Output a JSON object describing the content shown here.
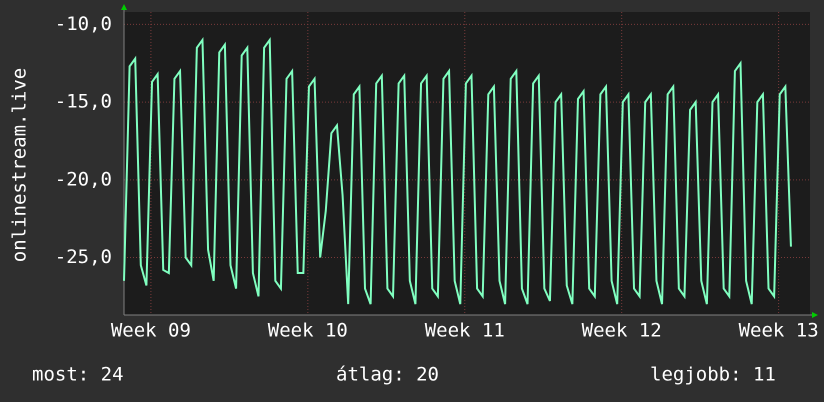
{
  "chart_data": {
    "type": "line",
    "y_label": "onlinestream.live",
    "x": [
      0,
      0.25,
      0.5,
      0.75,
      1,
      1.25,
      1.5,
      1.75,
      2,
      2.25,
      2.5,
      2.75,
      3,
      3.25,
      3.5,
      3.75,
      4,
      4.25,
      4.5,
      4.75,
      5,
      5.25,
      5.5,
      5.75,
      6,
      6.25,
      6.5,
      6.75,
      7,
      7.25,
      7.5,
      7.75,
      8,
      8.25,
      8.5,
      8.75,
      9,
      9.25,
      9.5,
      9.75,
      10,
      10.25,
      10.5,
      10.75,
      11,
      11.25,
      11.5,
      11.75,
      12,
      12.25,
      12.5,
      12.75,
      13,
      13.25,
      13.5,
      13.75,
      14,
      14.25,
      14.5,
      14.75,
      15,
      15.25,
      15.5,
      15.75,
      16,
      16.25,
      16.5,
      16.75,
      17,
      17.25,
      17.5,
      17.75,
      18,
      18.25,
      18.5,
      18.75,
      19,
      19.25,
      19.5,
      19.75,
      20,
      20.25,
      20.5,
      20.75,
      21,
      21.25,
      21.5,
      21.75,
      22,
      22.25,
      22.5,
      22.75,
      23,
      23.25,
      23.5,
      23.75,
      24,
      24.25,
      24.5,
      24.75,
      25,
      25.25,
      25.5,
      25.75,
      26,
      26.25,
      26.5,
      26.75,
      27,
      27.25,
      27.5,
      27.75,
      28,
      28.25,
      28.5,
      28.75,
      29,
      29.25,
      29.5,
      29.75
    ],
    "series": [
      {
        "name": "onlinestream.live",
        "color": "#80ffc0",
        "values": [
          -26.5,
          -12.7,
          -12.2,
          -25.5,
          -26.8,
          -13.7,
          -13.2,
          -25.8,
          -26.0,
          -13.5,
          -13.0,
          -25.0,
          -25.5,
          -11.5,
          -11.0,
          -24.5,
          -26.5,
          -11.8,
          -11.3,
          -25.5,
          -27.0,
          -12.0,
          -11.5,
          -26.0,
          -27.5,
          -11.5,
          -11.0,
          -26.5,
          -27.0,
          -13.5,
          -13.0,
          -26.0,
          -26.0,
          -14.0,
          -13.5,
          -25.0,
          -22.0,
          -17.0,
          -16.5,
          -21.0,
          -28.0,
          -14.5,
          -14.0,
          -27.0,
          -28.0,
          -13.8,
          -13.3,
          -27.0,
          -27.5,
          -13.8,
          -13.3,
          -26.5,
          -28.0,
          -13.8,
          -13.3,
          -27.0,
          -27.5,
          -13.5,
          -13.0,
          -26.5,
          -28.0,
          -13.8,
          -13.3,
          -27.0,
          -27.5,
          -14.5,
          -14.0,
          -26.5,
          -28.0,
          -13.5,
          -13.0,
          -27.0,
          -28.0,
          -13.8,
          -13.3,
          -27.0,
          -27.8,
          -15.0,
          -14.5,
          -26.8,
          -28.0,
          -14.8,
          -14.3,
          -27.0,
          -27.5,
          -14.5,
          -14.0,
          -26.5,
          -28.0,
          -15.0,
          -14.5,
          -27.0,
          -27.5,
          -15.0,
          -14.5,
          -26.5,
          -28.0,
          -14.5,
          -14.0,
          -27.0,
          -27.5,
          -15.5,
          -15.0,
          -26.5,
          -28.0,
          -15.0,
          -14.5,
          -27.0,
          -27.5,
          -13.0,
          -12.5,
          -26.5,
          -28.0,
          -15.0,
          -14.5,
          -27.0,
          -27.5,
          -14.5,
          -14.0,
          -24.3
        ]
      }
    ],
    "xlim": [
      0,
      30.6
    ],
    "xticks": [
      {
        "value": 1.2,
        "label": "Week 09"
      },
      {
        "value": 8.2,
        "label": "Week 10"
      },
      {
        "value": 15.2,
        "label": "Week 11"
      },
      {
        "value": 22.2,
        "label": "Week 12"
      },
      {
        "value": 29.2,
        "label": "Week 13"
      }
    ],
    "ylim": [
      -28.7,
      -9.2
    ],
    "yticks": [
      {
        "value": -10,
        "label": "-10,0"
      },
      {
        "value": -15,
        "label": "-15,0"
      },
      {
        "value": -20,
        "label": "-20,0"
      },
      {
        "value": -25,
        "label": "-25,0"
      }
    ],
    "grid": true,
    "footer": [
      "most: 24",
      "átlag: 20",
      "legjobb: 11"
    ]
  }
}
